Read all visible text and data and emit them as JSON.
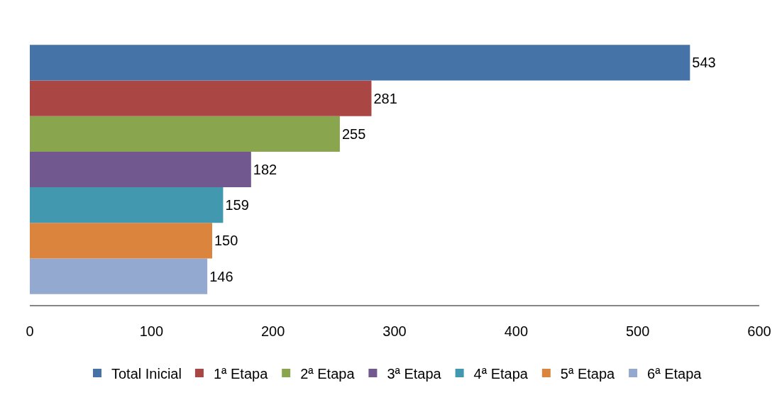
{
  "chart_data": {
    "type": "bar",
    "orientation": "horizontal",
    "categories": [
      null
    ],
    "series": [
      {
        "name": "Total Inicial",
        "color": "#4572a7",
        "values": [
          543
        ]
      },
      {
        "name": "1ª Etapa",
        "color": "#aa4643",
        "values": [
          281
        ]
      },
      {
        "name": "2ª Etapa",
        "color": "#89a54e",
        "values": [
          255
        ]
      },
      {
        "name": "3ª Etapa",
        "color": "#71588f",
        "values": [
          182
        ]
      },
      {
        "name": "4ª Etapa",
        "color": "#4198af",
        "values": [
          159
        ]
      },
      {
        "name": "5ª Etapa",
        "color": "#db843d",
        "values": [
          150
        ]
      },
      {
        "name": "6ª Etapa",
        "color": "#93a9cf",
        "values": [
          146
        ]
      }
    ],
    "xlim": [
      0,
      600
    ],
    "xticks": [
      0,
      100,
      200,
      300,
      400,
      500,
      600
    ],
    "legend": "bottom",
    "data_labels": true,
    "tick_labels": "x"
  }
}
